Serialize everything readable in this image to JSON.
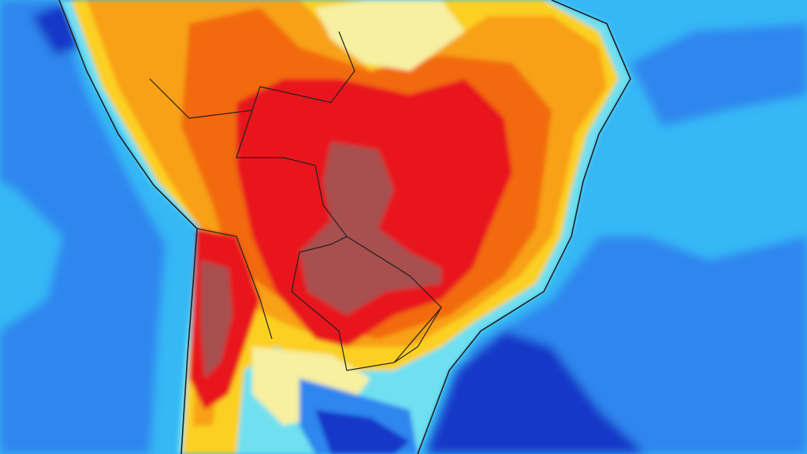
{
  "map": {
    "colors": {
      "ocean_light": "#36b8f5",
      "ocean_mid": "#2f86ee",
      "ocean_deep": "#1238c8",
      "cool_cyan": "#6fe0f0",
      "pale_yellow": "#f6f0a0",
      "yellow": "#fbd020",
      "orange": "#f8a018",
      "dark_orange": "#f26a10",
      "red": "#e8161a",
      "dark_red": "#a85050",
      "border": "#202020"
    }
  }
}
